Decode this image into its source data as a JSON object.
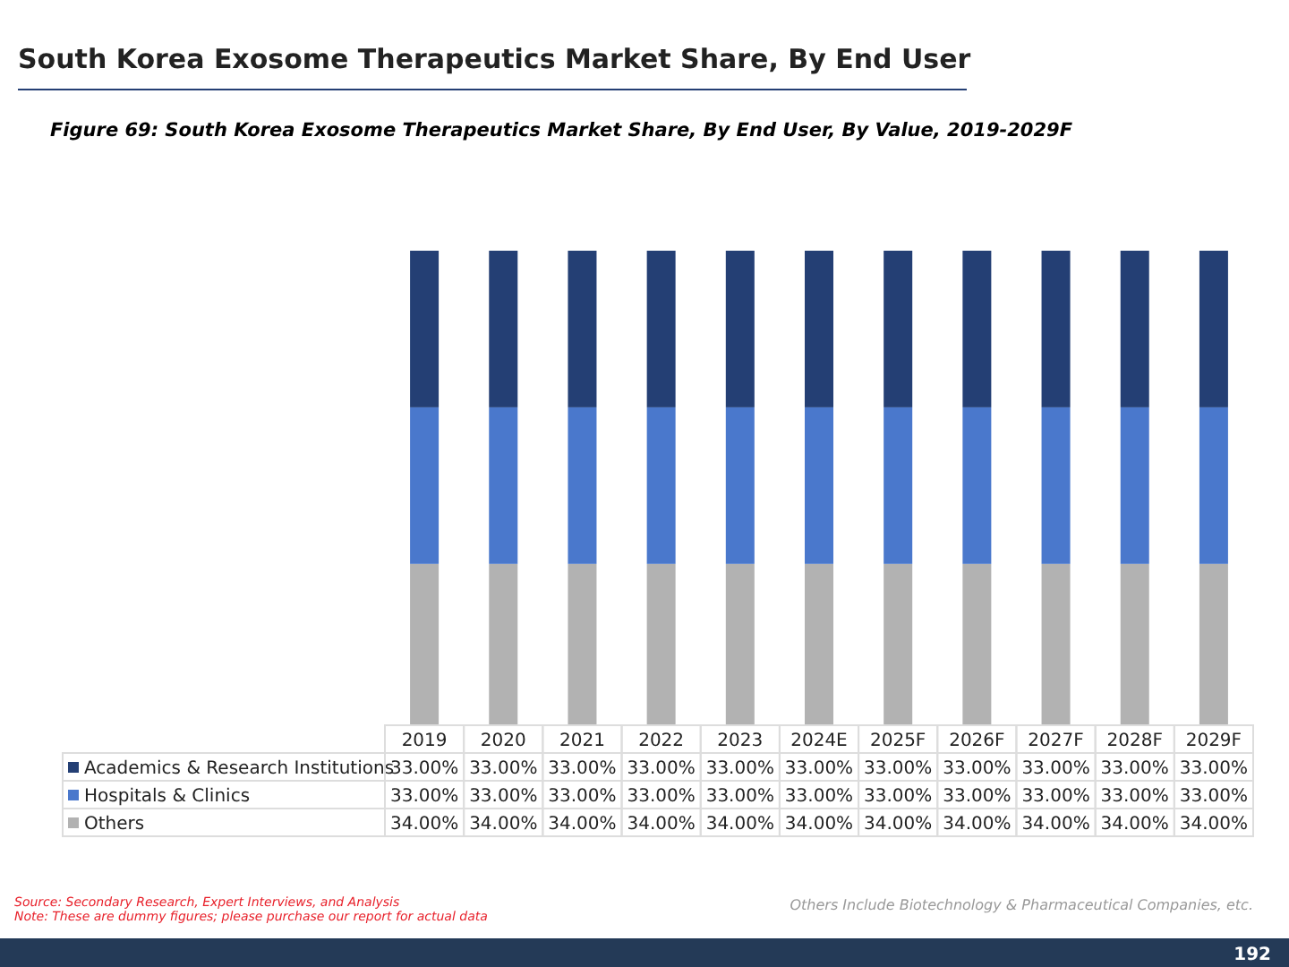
{
  "chart_data": {
    "type": "bar",
    "title": "South Korea Exosome Therapeutics Market Share, By End User",
    "subtitle": "Figure 69: South Korea Exosome Therapeutics Market Share, By End User, By Value, 2019-2029F",
    "categories": [
      "2019",
      "2020",
      "2021",
      "2022",
      "2023",
      "2024E",
      "2025F",
      "2026F",
      "2027F",
      "2028F",
      "2029F"
    ],
    "stacked": true,
    "tick_labels": "x",
    "legend": "bottom",
    "series": [
      {
        "name": "Others",
        "color": "#b2b2b2",
        "values": [
          34,
          34,
          34,
          34,
          34,
          34,
          34,
          34,
          34,
          34,
          34
        ],
        "value_labels": [
          "34.00%",
          "34.00%",
          "34.00%",
          "34.00%",
          "34.00%",
          "34.00%",
          "34.00%",
          "34.00%",
          "34.00%",
          "34.00%",
          "34.00%"
        ]
      },
      {
        "name": "Hospitals & Clinics",
        "color": "#4a78cc",
        "values": [
          33,
          33,
          33,
          33,
          33,
          33,
          33,
          33,
          33,
          33,
          33
        ],
        "value_labels": [
          "33.00%",
          "33.00%",
          "33.00%",
          "33.00%",
          "33.00%",
          "33.00%",
          "33.00%",
          "33.00%",
          "33.00%",
          "33.00%",
          "33.00%"
        ]
      },
      {
        "name": "Academics & Research Institutions",
        "color": "#243f74",
        "values": [
          33,
          33,
          33,
          33,
          33,
          33,
          33,
          33,
          33,
          33,
          33
        ],
        "value_labels": [
          "33.00%",
          "33.00%",
          "33.00%",
          "33.00%",
          "33.00%",
          "33.00%",
          "33.00%",
          "33.00%",
          "33.00%",
          "33.00%",
          "33.00%"
        ]
      }
    ],
    "annotations": [
      "Source: Secondary Research, Expert Interviews, and Analysis",
      "Note: These are dummy figures; please purchase our report for actual data",
      "Others Include Biotechnology & Pharmaceutical Companies, etc.",
      "192"
    ]
  }
}
